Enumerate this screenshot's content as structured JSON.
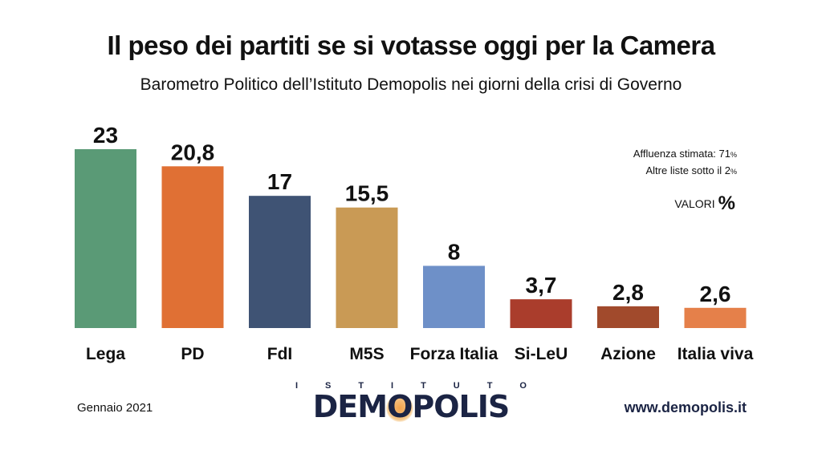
{
  "header": {
    "title": "Il peso dei partiti se si votasse oggi per la Camera",
    "subtitle": "Barometro Politico dell’Istituto Demopolis nei giorni della crisi di Governo"
  },
  "notes": {
    "affluenza_label": "Affluenza stimata: 71",
    "altre_label": "Altre liste sotto il 2",
    "pct_sign": "%",
    "valori_label": "VALORI",
    "valori_sign": "%"
  },
  "footer": {
    "date": "Gennaio 2021",
    "website": "www.demopolis.it",
    "logo_top": [
      "I",
      "S",
      "T",
      "I",
      "T",
      "U",
      "T",
      "O"
    ],
    "logo_main_a": "DEM",
    "logo_main_o": "O",
    "logo_main_b": "POLIS"
  },
  "chart_data": {
    "type": "bar",
    "categories": [
      "Lega",
      "PD",
      "FdI",
      "M5S",
      "Forza Italia",
      "Si-LeU",
      "Azione",
      "Italia viva"
    ],
    "values": [
      23,
      20.8,
      17,
      15.5,
      8,
      3.7,
      2.8,
      2.6
    ],
    "value_labels": [
      "23",
      "20,8",
      "17",
      "15,5",
      "8",
      "3,7",
      "2,8",
      "2,6"
    ],
    "colors": [
      "#5a9a76",
      "#e07034",
      "#3f5374",
      "#c99a55",
      "#6e90c8",
      "#aa3d2c",
      "#a14a2c",
      "#e5804a"
    ],
    "ylim": [
      0,
      23
    ],
    "grid": false
  }
}
